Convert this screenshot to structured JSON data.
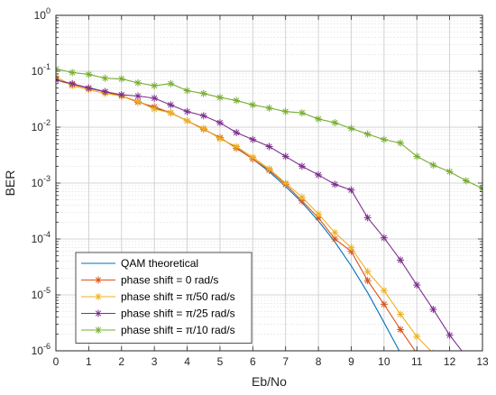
{
  "chart_data": {
    "type": "line",
    "xlabel": "Eb/No",
    "ylabel": "BER",
    "xlim": [
      0,
      13
    ],
    "ylim_log10": [
      -6,
      0
    ],
    "y_scale": "log",
    "grid": "major and minor",
    "legend_position": "bottom-left",
    "x_ticks": [
      "0",
      "1",
      "2",
      "3",
      "4",
      "5",
      "6",
      "7",
      "8",
      "9",
      "10",
      "11",
      "12",
      "13"
    ],
    "y_ticks": [
      {
        "base": "10",
        "exp": "0",
        "value": 1
      },
      {
        "base": "10",
        "exp": "-1",
        "value": 0.1
      },
      {
        "base": "10",
        "exp": "-2",
        "value": 0.01
      },
      {
        "base": "10",
        "exp": "-3",
        "value": 0.001
      },
      {
        "base": "10",
        "exp": "-4",
        "value": 0.0001
      },
      {
        "base": "10",
        "exp": "-5",
        "value": 1e-05
      },
      {
        "base": "10",
        "exp": "-6",
        "value": 1e-06
      }
    ],
    "series": [
      {
        "name": "QAM theoretical",
        "color": "#0072BD",
        "marker": "none",
        "x": [
          0,
          0.5,
          1,
          1.5,
          2,
          2.5,
          3,
          3.5,
          4,
          4.5,
          5,
          5.5,
          6,
          6.5,
          7,
          7.5,
          8,
          8.5,
          9,
          9.5,
          10,
          10.5
        ],
        "y": [
          0.07,
          0.058,
          0.051,
          0.043,
          0.036,
          0.029,
          0.022,
          0.018,
          0.013,
          0.0093,
          0.0064,
          0.0043,
          0.0027,
          0.0016,
          0.00087,
          0.00045,
          0.00021,
          8.9e-05,
          3.3e-05,
          1.1e-05,
          3.2e-06,
          9.1e-07
        ]
      },
      {
        "name": "phase shift = 0 rad/s",
        "color": "#D95319",
        "marker": "asterisk",
        "x": [
          0,
          0.5,
          1,
          1.5,
          2,
          2.5,
          3,
          3.5,
          4,
          4.5,
          5,
          5.5,
          6,
          6.5,
          7,
          7.5,
          8,
          8.5,
          9,
          9.5,
          10,
          10.5,
          11
        ],
        "y": [
          0.07,
          0.058,
          0.05,
          0.043,
          0.036,
          0.028,
          0.023,
          0.018,
          0.013,
          0.0092,
          0.0065,
          0.0042,
          0.0027,
          0.0017,
          0.00095,
          0.00048,
          0.00024,
          0.0001,
          6e-05,
          1.8e-05,
          6.8e-06,
          2.4e-06,
          9e-07
        ]
      },
      {
        "name": "phase shift = π/50 rad/s",
        "color": "#EDB120",
        "marker": "asterisk",
        "x": [
          0,
          0.5,
          1,
          1.5,
          2,
          2.5,
          3,
          3.5,
          4,
          4.5,
          5,
          5.5,
          6,
          6.5,
          7,
          7.5,
          8,
          8.5,
          9,
          9.5,
          10,
          10.5,
          11,
          11.5
        ],
        "y": [
          0.08,
          0.055,
          0.047,
          0.04,
          0.036,
          0.029,
          0.021,
          0.018,
          0.013,
          0.0095,
          0.0062,
          0.0045,
          0.0029,
          0.0018,
          0.001,
          0.00056,
          0.00028,
          0.00013,
          7e-05,
          2.6e-05,
          1.2e-05,
          4.5e-06,
          1.8e-06,
          9e-07
        ]
      },
      {
        "name": "phase shift = π/25 rad/s",
        "color": "#7E2F8E",
        "marker": "asterisk",
        "x": [
          0,
          0.5,
          1,
          1.5,
          2,
          2.5,
          3,
          3.5,
          4,
          4.5,
          5,
          5.5,
          6,
          6.5,
          7,
          7.5,
          8,
          8.5,
          9,
          9.5,
          10,
          10.5,
          11,
          11.5,
          12,
          12.5
        ],
        "y": [
          0.07,
          0.06,
          0.05,
          0.043,
          0.038,
          0.036,
          0.033,
          0.025,
          0.019,
          0.016,
          0.012,
          0.008,
          0.006,
          0.0045,
          0.003,
          0.002,
          0.0014,
          0.00095,
          0.00075,
          0.00024,
          0.000105,
          4.2e-05,
          1.5e-05,
          5.5e-06,
          1.9e-06,
          8e-07
        ]
      },
      {
        "name": "phase shift = π/10 rad/s",
        "color": "#77AC30",
        "marker": "asterisk",
        "x": [
          0,
          0.5,
          1,
          1.5,
          2,
          2.5,
          3,
          3.5,
          4,
          4.5,
          5,
          5.5,
          6,
          6.5,
          7,
          7.5,
          8,
          8.5,
          9,
          9.5,
          10,
          10.5,
          11,
          11.5,
          12,
          12.5,
          13
        ],
        "y": [
          0.11,
          0.095,
          0.088,
          0.075,
          0.073,
          0.062,
          0.055,
          0.06,
          0.045,
          0.04,
          0.034,
          0.03,
          0.025,
          0.022,
          0.019,
          0.018,
          0.014,
          0.012,
          0.0095,
          0.0075,
          0.006,
          0.0052,
          0.003,
          0.0021,
          0.0016,
          0.0011,
          0.0008
        ]
      }
    ]
  }
}
